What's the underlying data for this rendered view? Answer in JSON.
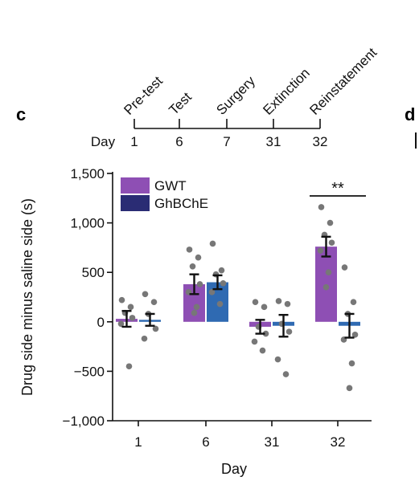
{
  "panel_labels": {
    "current": "c",
    "next": "d"
  },
  "timeline": {
    "prefix": "Day",
    "events": [
      {
        "name": "Pre-test",
        "day": "1"
      },
      {
        "name": "Test",
        "day": "6"
      },
      {
        "name": "Surgery",
        "day": "7"
      },
      {
        "name": "Extinction",
        "day": "31"
      },
      {
        "name": "Reinstatement",
        "day": "32"
      }
    ]
  },
  "chart_data": {
    "type": "bar",
    "title": "",
    "xlabel": "Day",
    "ylabel": "Drug side minus saline side (s)",
    "categories": [
      "1",
      "6",
      "31",
      "32"
    ],
    "ylim": [
      -1000,
      1500
    ],
    "yticks": [
      -1000,
      -500,
      0,
      500,
      1000,
      1500
    ],
    "ytick_labels": [
      "−1,000",
      "−500",
      "0",
      "500",
      "1,000",
      "1,500"
    ],
    "legend_position": "top-left",
    "series": [
      {
        "name": "GWT",
        "color": "#8e4fb4",
        "values": [
          30,
          380,
          -50,
          760
        ],
        "errors": [
          80,
          100,
          70,
          100
        ],
        "points": [
          [
            220,
            150,
            90,
            40,
            -20,
            -450
          ],
          [
            730,
            650,
            560,
            380,
            300,
            150,
            90
          ],
          [
            200,
            150,
            -50,
            -120,
            -200,
            -290
          ],
          [
            1160,
            1000,
            880,
            800,
            720,
            500,
            350
          ]
        ]
      },
      {
        "name": "GhBChE",
        "color": "#2a2c74",
        "bar_color": "#2f6ab2",
        "values": [
          20,
          400,
          -40,
          -40
        ],
        "errors": [
          60,
          70,
          110,
          120
        ],
        "points": [
          [
            280,
            200,
            80,
            -70,
            -170
          ],
          [
            790,
            520,
            480,
            390,
            300,
            180
          ],
          [
            210,
            180,
            -20,
            -100,
            -380,
            -530
          ],
          [
            550,
            200,
            80,
            -130,
            -180,
            -420,
            -670
          ]
        ]
      }
    ],
    "significance": {
      "label": "**",
      "category": "32"
    },
    "point_color": "#777777"
  }
}
